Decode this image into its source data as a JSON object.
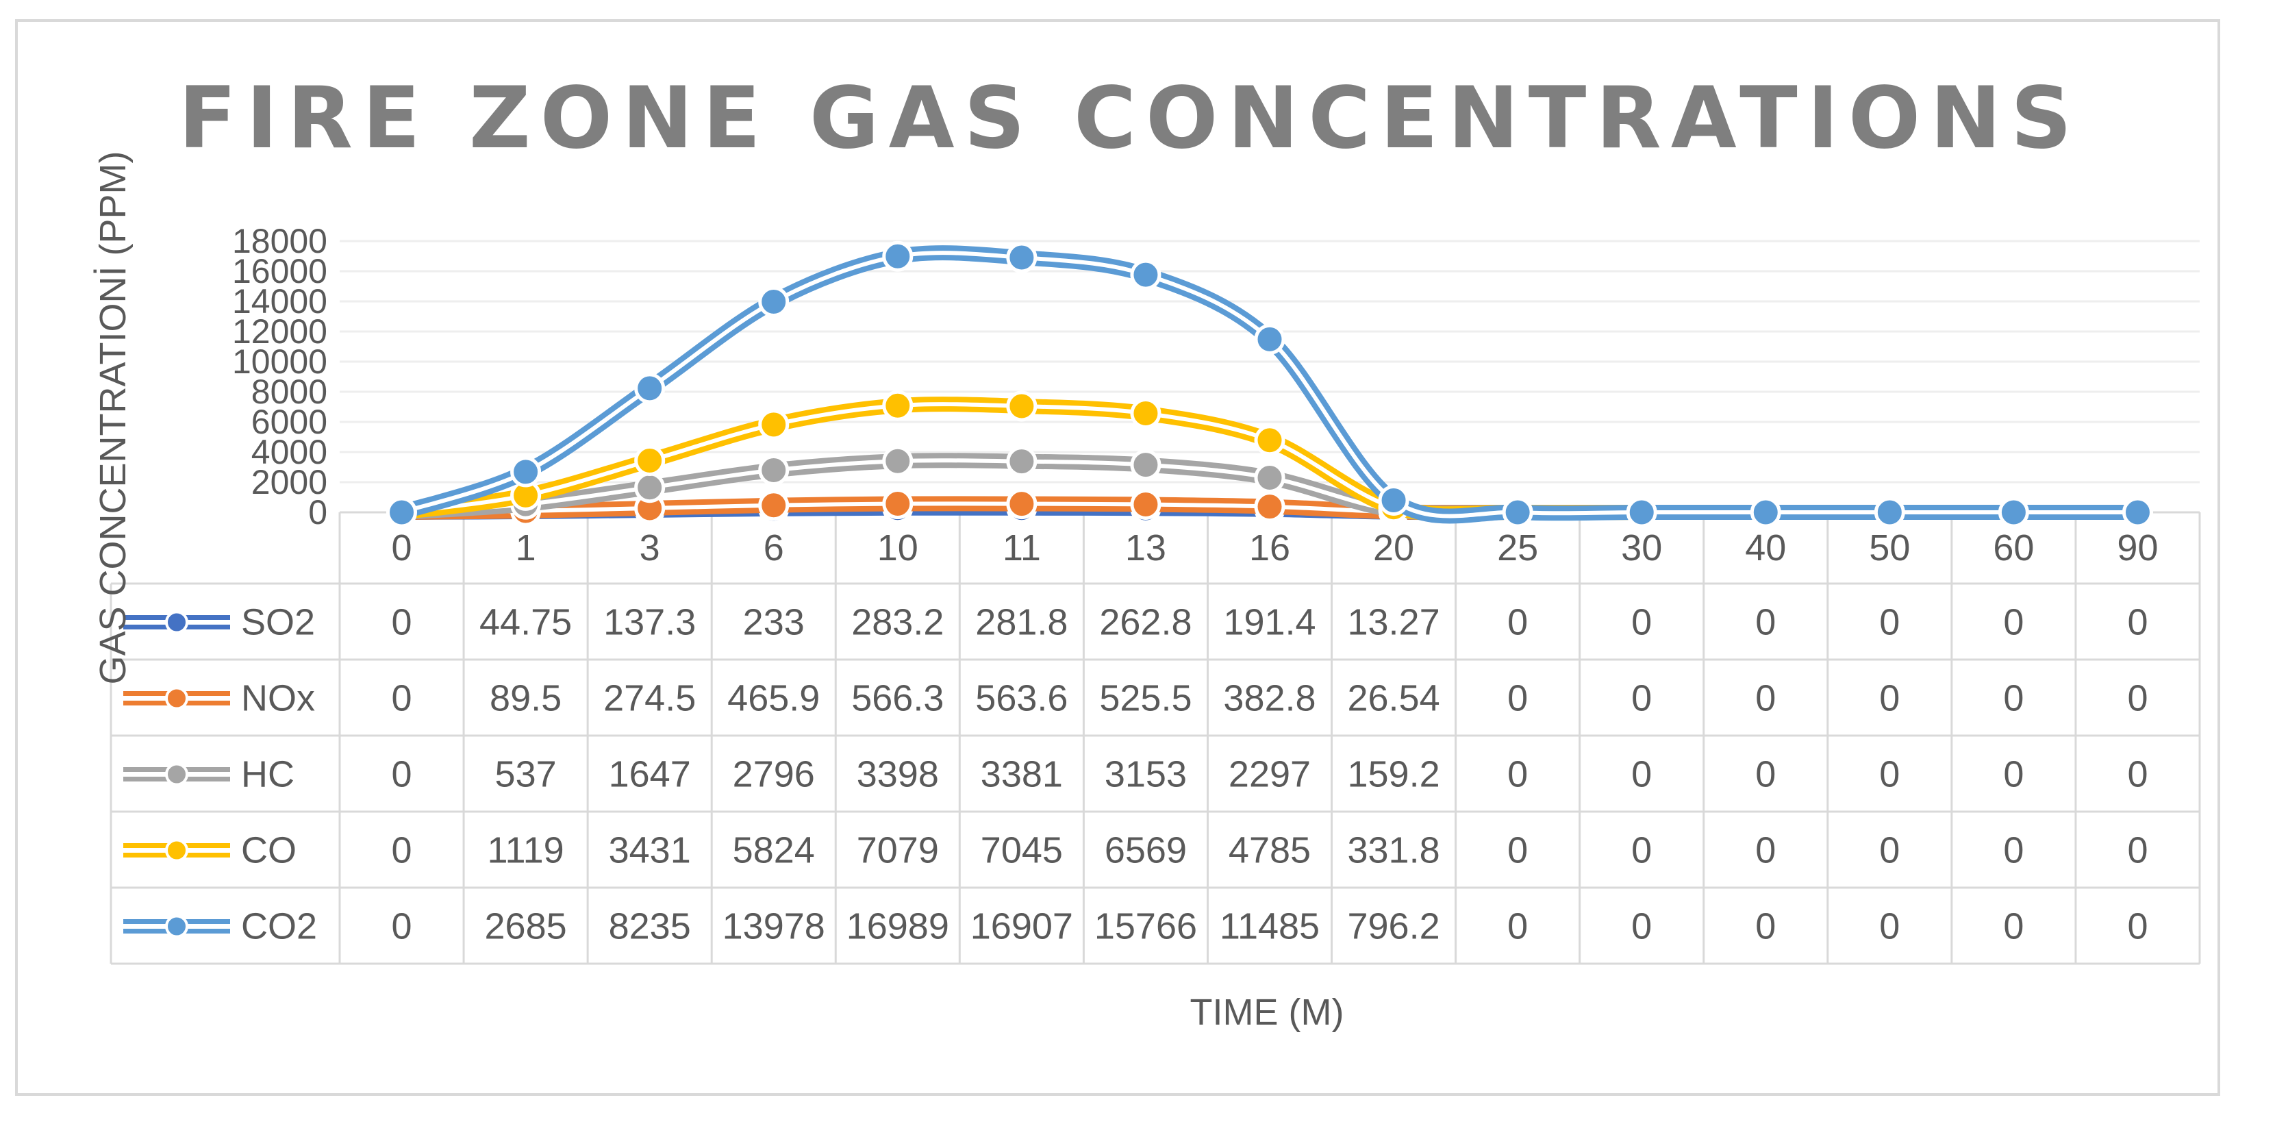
{
  "chart_data": {
    "type": "line",
    "title": "FIRE ZONE GAS CONCENTRATIONS",
    "xlabel": "TIME (M)",
    "ylabel": "GAS CONCENTRATIONİ (PPM)",
    "categories": [
      "0",
      "1",
      "3",
      "6",
      "10",
      "11",
      "13",
      "16",
      "20",
      "25",
      "30",
      "40",
      "50",
      "60",
      "90"
    ],
    "ylim": [
      0,
      18000
    ],
    "yticks": [
      "0",
      "2000",
      "4000",
      "6000",
      "8000",
      "10000",
      "12000",
      "14000",
      "16000",
      "18000"
    ],
    "grid": true,
    "legend": "data-table",
    "series": [
      {
        "name": "SO2",
        "color": "#4472c4",
        "values": [
          0,
          44.75,
          137.3,
          233,
          283.2,
          281.8,
          262.8,
          191.4,
          13.27,
          0,
          0,
          0,
          0,
          0,
          0
        ]
      },
      {
        "name": "NOx",
        "color": "#ed7d31",
        "values": [
          0,
          89.5,
          274.5,
          465.9,
          566.3,
          563.6,
          525.5,
          382.8,
          26.54,
          0,
          0,
          0,
          0,
          0,
          0
        ]
      },
      {
        "name": "HC",
        "color": "#a5a5a5",
        "values": [
          0,
          537,
          1647,
          2796,
          3398,
          3381,
          3153,
          2297,
          159.2,
          0,
          0,
          0,
          0,
          0,
          0
        ]
      },
      {
        "name": "CO",
        "color": "#ffc000",
        "values": [
          0,
          1119,
          3431,
          5824,
          7079,
          7045,
          6569,
          4785,
          331.8,
          0,
          0,
          0,
          0,
          0,
          0
        ]
      },
      {
        "name": "CO2",
        "color": "#5b9bd5",
        "values": [
          0,
          2685,
          8235,
          13978,
          16989,
          16907,
          15766,
          11485,
          796.2,
          0,
          0,
          0,
          0,
          0,
          0
        ]
      }
    ]
  }
}
